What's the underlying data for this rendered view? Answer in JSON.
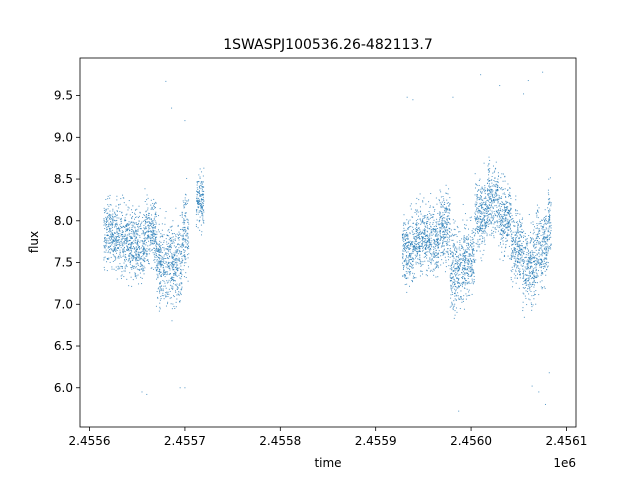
{
  "chart_data": {
    "type": "scatter",
    "title": "1SWASPJ100536.26-482113.7",
    "xlabel": "time",
    "ylabel": "flux",
    "x_offset_label": "1e6",
    "xlim": [
      2.45559,
      2.45611
    ],
    "ylim": [
      5.53,
      9.95
    ],
    "x_ticks": [
      2.4556,
      2.4557,
      2.4558,
      2.4559,
      2.456,
      2.4561
    ],
    "x_tick_labels": [
      "2.4556",
      "2.4557",
      "2.4558",
      "2.4559",
      "2.4560",
      "2.4561"
    ],
    "y_ticks": [
      6.0,
      6.5,
      7.0,
      7.5,
      8.0,
      8.5,
      9.0,
      9.5
    ],
    "y_tick_labels": [
      "6.0",
      "6.5",
      "7.0",
      "7.5",
      "8.0",
      "8.5",
      "9.0",
      "9.5"
    ],
    "grid": false,
    "marker_color": "#1f77b4",
    "series": [
      {
        "segments": [
          {
            "x_start": 2.455615,
            "x_end": 2.455629,
            "center": 7.85,
            "spread": 0.35
          },
          {
            "x_start": 2.455629,
            "x_end": 2.455645,
            "center": 7.75,
            "spread": 0.38
          },
          {
            "x_start": 2.455645,
            "x_end": 2.455658,
            "center": 7.7,
            "spread": 0.35
          },
          {
            "x_start": 2.455658,
            "x_end": 2.45567,
            "center": 7.88,
            "spread": 0.4
          },
          {
            "x_start": 2.45567,
            "x_end": 2.455684,
            "center": 7.5,
            "spread": 0.4
          },
          {
            "x_start": 2.455684,
            "x_end": 2.455697,
            "center": 7.45,
            "spread": 0.45
          },
          {
            "x_start": 2.455697,
            "x_end": 2.455704,
            "center": 7.85,
            "spread": 0.42
          },
          {
            "x_start": 2.455712,
            "x_end": 2.45572,
            "center": 8.25,
            "spread": 0.3
          },
          {
            "x_start": 2.455928,
            "x_end": 2.455941,
            "center": 7.65,
            "spread": 0.35
          },
          {
            "x_start": 2.455941,
            "x_end": 2.455953,
            "center": 7.8,
            "spread": 0.38
          },
          {
            "x_start": 2.455953,
            "x_end": 2.455966,
            "center": 7.75,
            "spread": 0.35
          },
          {
            "x_start": 2.455966,
            "x_end": 2.455978,
            "center": 7.95,
            "spread": 0.38
          },
          {
            "x_start": 2.455978,
            "x_end": 2.455991,
            "center": 7.4,
            "spread": 0.45
          },
          {
            "x_start": 2.455991,
            "x_end": 2.456004,
            "center": 7.55,
            "spread": 0.4
          },
          {
            "x_start": 2.456004,
            "x_end": 2.456017,
            "center": 8.05,
            "spread": 0.38
          },
          {
            "x_start": 2.456017,
            "x_end": 2.456029,
            "center": 8.25,
            "spread": 0.4
          },
          {
            "x_start": 2.456029,
            "x_end": 2.456042,
            "center": 8.05,
            "spread": 0.38
          },
          {
            "x_start": 2.456042,
            "x_end": 2.456054,
            "center": 7.7,
            "spread": 0.38
          },
          {
            "x_start": 2.456054,
            "x_end": 2.456068,
            "center": 7.45,
            "spread": 0.42
          },
          {
            "x_start": 2.456068,
            "x_end": 2.456081,
            "center": 7.7,
            "spread": 0.42
          },
          {
            "x_start": 2.456081,
            "x_end": 2.456084,
            "center": 8.0,
            "spread": 0.4
          }
        ],
        "outliers": [
          {
            "x": 2.45568,
            "y": 9.67
          },
          {
            "x": 2.455686,
            "y": 9.35
          },
          {
            "x": 2.4557,
            "y": 9.2
          },
          {
            "x": 2.455655,
            "y": 5.95
          },
          {
            "x": 2.45566,
            "y": 5.92
          },
          {
            "x": 2.455695,
            "y": 6.0
          },
          {
            "x": 2.4557,
            "y": 6.0
          },
          {
            "x": 2.455933,
            "y": 9.48
          },
          {
            "x": 2.455939,
            "y": 9.45
          },
          {
            "x": 2.455981,
            "y": 9.48
          },
          {
            "x": 2.455987,
            "y": 5.72
          },
          {
            "x": 2.45601,
            "y": 9.75
          },
          {
            "x": 2.45603,
            "y": 9.62
          },
          {
            "x": 2.456055,
            "y": 9.52
          },
          {
            "x": 2.45606,
            "y": 9.68
          },
          {
            "x": 2.456075,
            "y": 9.78
          },
          {
            "x": 2.456064,
            "y": 6.02
          },
          {
            "x": 2.456071,
            "y": 5.95
          },
          {
            "x": 2.456078,
            "y": 5.8
          },
          {
            "x": 2.456082,
            "y": 6.18
          }
        ]
      }
    ]
  }
}
